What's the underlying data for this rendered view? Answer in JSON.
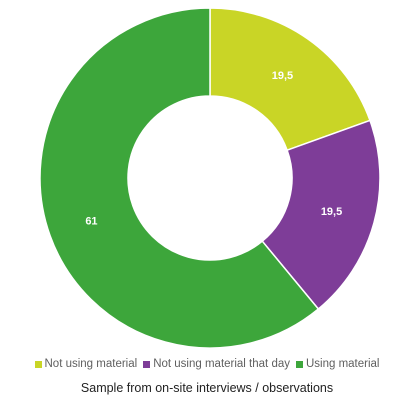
{
  "chart_data": {
    "type": "pie",
    "donut": true,
    "title": "",
    "caption": "Sample from on-site interviews / observations",
    "slices": [
      {
        "name": "Not using material",
        "value": 19.5,
        "label": "19,5",
        "color": "#c9d526"
      },
      {
        "name": "Not using material that day",
        "value": 19.5,
        "label": "19,5",
        "color": "#7e3d98"
      },
      {
        "name": "Using material",
        "value": 61,
        "label": "61",
        "color": "#3da63b"
      }
    ],
    "legend_position": "bottom"
  }
}
